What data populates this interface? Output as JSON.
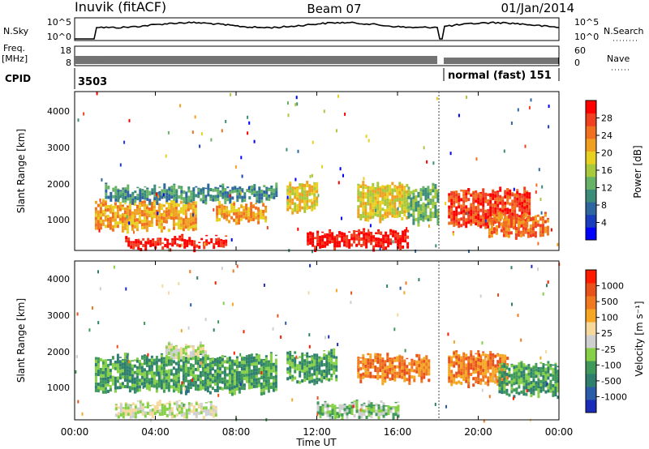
{
  "header": {
    "station": "Inuvik (fitACF)",
    "beam": "Beam 07",
    "date": "01/Jan/2014"
  },
  "noise_panel": {
    "left_label": "N.Sky",
    "right_label": "N.Search",
    "left_ticks": [
      "10^5",
      "10^0"
    ],
    "right_ticks": [
      "10^5",
      "10^0"
    ]
  },
  "freq_panel": {
    "left_label_1": "Freq.",
    "left_label_2": "[MHz]",
    "right_label": "Nave",
    "left_ticks": [
      "18",
      "8"
    ],
    "right_ticks": [
      "60",
      "0"
    ]
  },
  "cpid_panel": {
    "label": "CPID",
    "segments": [
      {
        "start": "00:00",
        "end": "18:00",
        "text": "3503"
      },
      {
        "start": "18:00",
        "end": "24:00",
        "text": "normal (fast) 151"
      }
    ]
  },
  "colorbars": {
    "power": {
      "title": "Power [dB]",
      "tick_labels": [
        "28",
        "24",
        "20",
        "16",
        "12",
        "8",
        "4"
      ],
      "colors": [
        "#0000ff",
        "#1a3dbd",
        "#2e66a0",
        "#3c8c7a",
        "#66b266",
        "#a8c93a",
        "#e8d020",
        "#f0a020",
        "#f07020",
        "#f04020",
        "#ff0000"
      ]
    },
    "velocity": {
      "title": "Velocity [m s⁻¹]",
      "tick_labels": [
        "1000",
        "500",
        "100",
        "25",
        "-25",
        "-100",
        "-500",
        "-1000"
      ],
      "colors": [
        "#1b2db8",
        "#2a5ca8",
        "#2e7f6e",
        "#3f9a5a",
        "#86d048",
        "#cfcfcf",
        "#f6d89a",
        "#f5a623",
        "#f07820",
        "#e8501c",
        "#ff1a00"
      ]
    }
  },
  "axes": {
    "ylabel": "Slant Range [km]",
    "y_ticks": [
      "1000",
      "2000",
      "3000",
      "4000"
    ],
    "x_ticks": [
      "00:00",
      "04:00",
      "08:00",
      "12:00",
      "16:00",
      "20:00",
      "00:00"
    ],
    "xlabel": "Time UT"
  },
  "chart_data": {
    "type": "heatmap",
    "x_range_hours": [
      0,
      24
    ],
    "y_range_km": [
      180,
      4600
    ],
    "y_tick_values": [
      1000,
      2000,
      3000,
      4000
    ],
    "x_tick_hours": [
      0,
      4,
      8,
      12,
      16,
      20,
      24
    ],
    "data_gap_hours": [
      18.0,
      18.1
    ],
    "power_regions": [
      {
        "t": [
          1.0,
          6.0
        ],
        "r": [
          700,
          1600
        ],
        "level": 7
      },
      {
        "t": [
          1.5,
          10.0
        ],
        "r": [
          1500,
          2000
        ],
        "level": 3
      },
      {
        "t": [
          2.5,
          7.5
        ],
        "r": [
          200,
          560
        ],
        "level": 10
      },
      {
        "t": [
          7.0,
          9.5
        ],
        "r": [
          900,
          1500
        ],
        "level": 7
      },
      {
        "t": [
          10.5,
          12.0
        ],
        "r": [
          1200,
          2100
        ],
        "level": 6
      },
      {
        "t": [
          11.5,
          16.5
        ],
        "r": [
          200,
          750
        ],
        "level": 10
      },
      {
        "t": [
          14.0,
          16.5
        ],
        "r": [
          1000,
          2100
        ],
        "level": 6
      },
      {
        "t": [
          16.5,
          18.0
        ],
        "r": [
          900,
          2000
        ],
        "level": 4
      },
      {
        "t": [
          18.5,
          22.5
        ],
        "r": [
          800,
          1900
        ],
        "level": 9
      },
      {
        "t": [
          20.5,
          23.5
        ],
        "r": [
          500,
          1200
        ],
        "level": 8
      }
    ],
    "velocity_regions": [
      {
        "t": [
          1.0,
          10.0
        ],
        "r": [
          900,
          2000
        ],
        "level": 3
      },
      {
        "t": [
          2.0,
          7.0
        ],
        "r": [
          200,
          700
        ],
        "level": 5
      },
      {
        "t": [
          4.5,
          6.5
        ],
        "r": [
          1800,
          2300
        ],
        "level": 5
      },
      {
        "t": [
          10.5,
          13.0
        ],
        "r": [
          1200,
          2100
        ],
        "level": 3
      },
      {
        "t": [
          12.0,
          16.0
        ],
        "r": [
          200,
          700
        ],
        "level": 4
      },
      {
        "t": [
          14.0,
          17.5
        ],
        "r": [
          1200,
          2000
        ],
        "level": 8
      },
      {
        "t": [
          18.5,
          21.5
        ],
        "r": [
          1100,
          2100
        ],
        "level": 8
      },
      {
        "t": [
          21.0,
          24.0
        ],
        "r": [
          800,
          1800
        ],
        "level": 3
      }
    ]
  }
}
